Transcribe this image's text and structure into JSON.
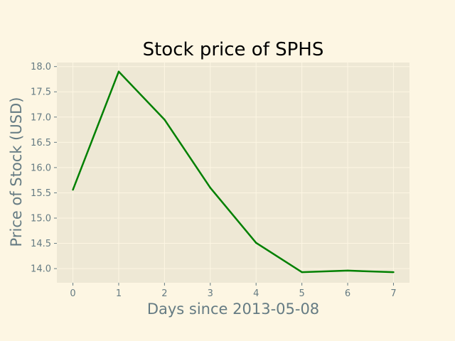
{
  "chart_data": {
    "type": "line",
    "title": "Stock price of SPHS",
    "xlabel": "Days since 2013-05-08",
    "ylabel": "Price of Stock (USD)",
    "x": [
      0,
      1,
      2,
      3,
      4,
      5,
      6,
      7
    ],
    "series": [
      {
        "values": [
          15.56,
          17.9,
          16.95,
          15.6,
          14.51,
          13.93,
          13.96,
          13.93
        ],
        "color": "#008000"
      }
    ],
    "xlim": [
      -0.35,
      7.35
    ],
    "ylim": [
      13.72,
      18.08
    ],
    "x_ticks": [
      "0",
      "1",
      "2",
      "3",
      "4",
      "5",
      "6",
      "7"
    ],
    "y_ticks": [
      "14.0",
      "14.5",
      "15.0",
      "15.5",
      "16.0",
      "16.5",
      "17.0",
      "17.5",
      "18.0"
    ],
    "grid": true,
    "colors": {
      "page_background": "#fdf6e3",
      "plot_background": "#eee8d5",
      "grid": "#fdf6e3",
      "text": "#657b83"
    }
  }
}
